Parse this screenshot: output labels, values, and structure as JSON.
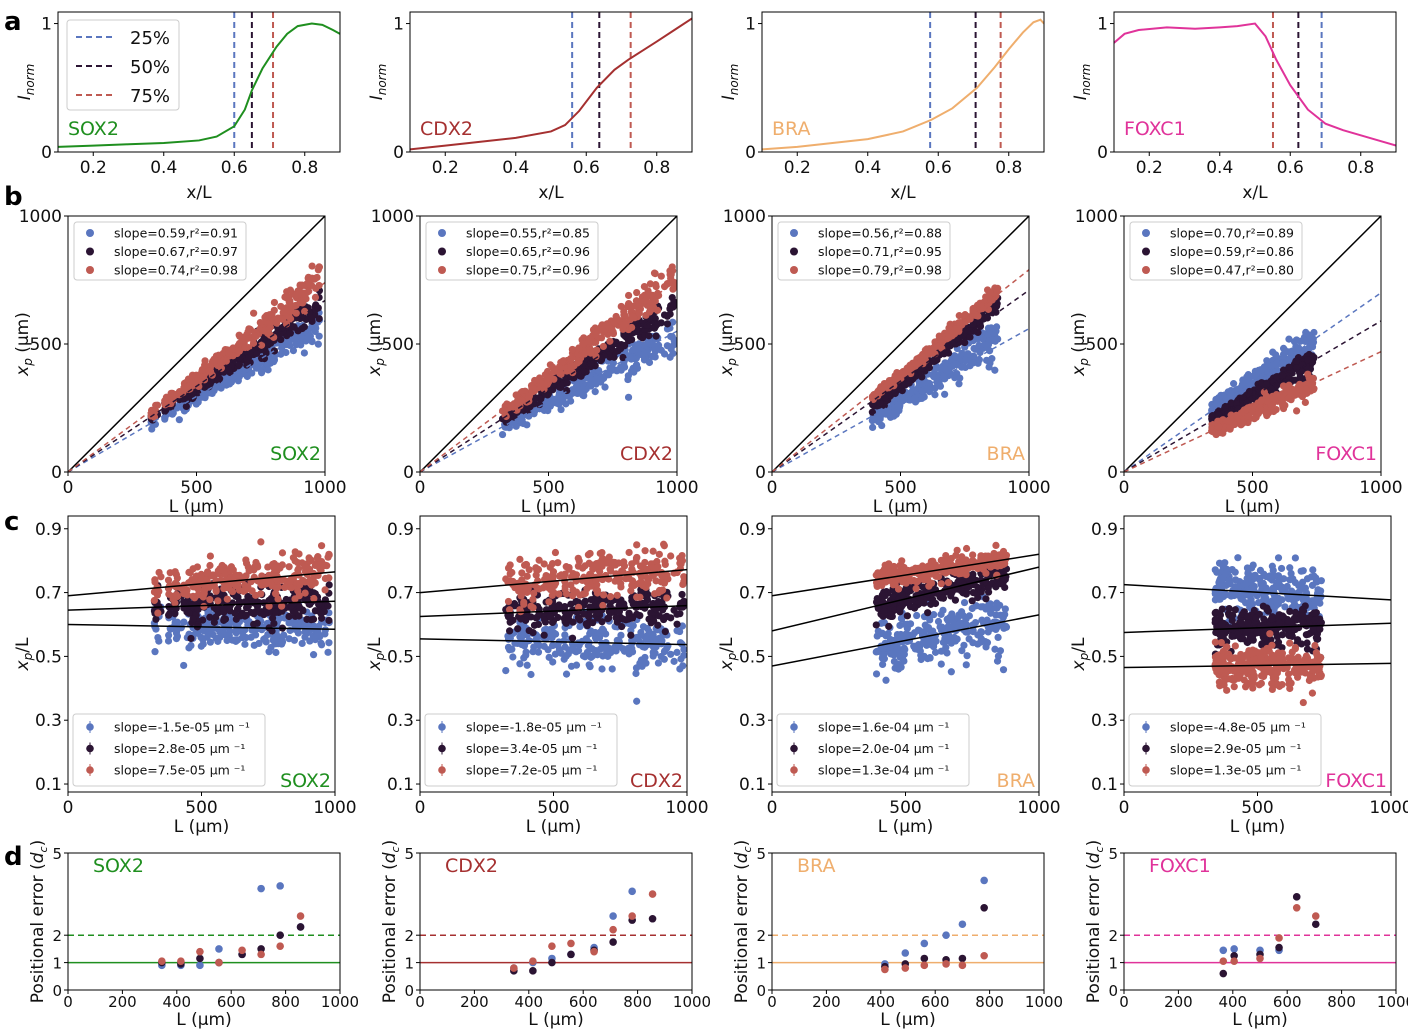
{
  "panel_labels": [
    "a",
    "b",
    "c",
    "d"
  ],
  "colors": {
    "25%": "#5a76bf",
    "50%": "#2b1433",
    "75%": "#bf5a52",
    "identity": "#000000",
    "fit_c": "#000000"
  },
  "genes": [
    {
      "name": "SOX2",
      "color": "#1f8f1f"
    },
    {
      "name": "CDX2",
      "color": "#a53030"
    },
    {
      "name": "BRA",
      "color": "#efae6d"
    },
    {
      "name": "FOXC1",
      "color": "#e0339a"
    }
  ],
  "row_a_legend": [
    "25%",
    "50%",
    "75%"
  ],
  "axis_labels": {
    "a": {
      "x": "x/L",
      "y_main": "I",
      "y_sub": "norm"
    },
    "b": {
      "x": "L (µm)",
      "y_main": "x",
      "y_sub": "p",
      "y_rest": " (µm)"
    },
    "c": {
      "x": "L (µm)",
      "y_main": "x",
      "y_sub": "p",
      "y_rest": "/L"
    },
    "d": {
      "x": "L (µm)",
      "y_main": "Positional error (",
      "y_sub": "c",
      "y_mid": "d",
      "y_rest": ")"
    }
  },
  "chart_data": [
    {
      "type": "line",
      "row": "a",
      "gene": "SOX2",
      "xlim": [
        0.1,
        0.9
      ],
      "ylim": [
        0,
        1.09
      ],
      "xticks": [
        "0.2",
        "0.4",
        "0.6",
        "0.8"
      ],
      "yticks": [
        "0",
        "1"
      ],
      "x": [
        0.1,
        0.2,
        0.3,
        0.4,
        0.5,
        0.55,
        0.6,
        0.63,
        0.65,
        0.68,
        0.72,
        0.75,
        0.78,
        0.82,
        0.85,
        0.88,
        0.9
      ],
      "y": [
        0.04,
        0.05,
        0.06,
        0.07,
        0.09,
        0.12,
        0.2,
        0.33,
        0.48,
        0.65,
        0.82,
        0.92,
        0.98,
        1.0,
        0.99,
        0.95,
        0.92
      ],
      "thresholds": {
        "25%": 0.6,
        "50%": 0.65,
        "75%": 0.71
      }
    },
    {
      "type": "line",
      "row": "a",
      "gene": "CDX2",
      "xlim": [
        0.1,
        0.9
      ],
      "ylim": [
        0,
        1.09
      ],
      "xticks": [
        "0.2",
        "0.4",
        "0.6",
        "0.8"
      ],
      "yticks": [
        "0",
        "1"
      ],
      "x": [
        0.1,
        0.2,
        0.3,
        0.4,
        0.5,
        0.54,
        0.58,
        0.63,
        0.68,
        0.72,
        0.76,
        0.8,
        0.85,
        0.9
      ],
      "y": [
        0.02,
        0.05,
        0.08,
        0.11,
        0.16,
        0.21,
        0.32,
        0.5,
        0.64,
        0.72,
        0.79,
        0.86,
        0.95,
        1.04
      ],
      "thresholds": {
        "25%": 0.56,
        "50%": 0.637,
        "75%": 0.726
      }
    },
    {
      "type": "line",
      "row": "a",
      "gene": "BRA",
      "xlim": [
        0.1,
        0.9
      ],
      "ylim": [
        0,
        1.09
      ],
      "xticks": [
        "0.2",
        "0.4",
        "0.6",
        "0.8"
      ],
      "yticks": [
        "0",
        "1"
      ],
      "x": [
        0.1,
        0.2,
        0.3,
        0.4,
        0.5,
        0.58,
        0.64,
        0.71,
        0.76,
        0.8,
        0.84,
        0.87,
        0.89,
        0.9
      ],
      "y": [
        0.02,
        0.04,
        0.07,
        0.1,
        0.16,
        0.25,
        0.34,
        0.5,
        0.66,
        0.8,
        0.93,
        1.01,
        1.03,
        1.0
      ],
      "thresholds": {
        "25%": 0.577,
        "50%": 0.706,
        "75%": 0.777
      }
    },
    {
      "type": "line",
      "row": "a",
      "gene": "FOXC1",
      "xlim": [
        0.1,
        0.9
      ],
      "ylim": [
        0,
        1.09
      ],
      "xticks": [
        "0.2",
        "0.4",
        "0.6",
        "0.8"
      ],
      "yticks": [
        "0",
        "1"
      ],
      "x": [
        0.1,
        0.13,
        0.17,
        0.25,
        0.33,
        0.4,
        0.45,
        0.5,
        0.53,
        0.56,
        0.6,
        0.65,
        0.7,
        0.75,
        0.8,
        0.85,
        0.9
      ],
      "y": [
        0.85,
        0.92,
        0.95,
        0.97,
        0.96,
        0.97,
        0.98,
        1.0,
        0.9,
        0.72,
        0.52,
        0.33,
        0.22,
        0.17,
        0.13,
        0.09,
        0.05
      ],
      "thresholds": {
        "25%": 0.689,
        "50%": 0.623,
        "75%": 0.551
      }
    },
    {
      "type": "scatter",
      "row": "b",
      "gene": "SOX2",
      "xlim": [
        0,
        1000
      ],
      "ylim": [
        0,
        1000
      ],
      "xticks": [
        "0",
        "500",
        "1000"
      ],
      "yticks": [
        "0",
        "500",
        "1000"
      ],
      "L_range": [
        320,
        980
      ],
      "series": [
        {
          "key": "25%",
          "legend": "slope=0.59,r²=0.91",
          "slope": 0.59,
          "r2": 0.91
        },
        {
          "key": "50%",
          "legend": "slope=0.67,r²=0.97",
          "slope": 0.67,
          "r2": 0.97
        },
        {
          "key": "75%",
          "legend": "slope=0.74,r²=0.98",
          "slope": 0.74,
          "r2": 0.98
        }
      ]
    },
    {
      "type": "scatter",
      "row": "b",
      "gene": "CDX2",
      "xlim": [
        0,
        1000
      ],
      "ylim": [
        0,
        1000
      ],
      "xticks": [
        "0",
        "500",
        "1000"
      ],
      "yticks": [
        "0",
        "500",
        "1000"
      ],
      "L_range": [
        320,
        990
      ],
      "series": [
        {
          "key": "25%",
          "legend": "slope=0.55,r²=0.85",
          "slope": 0.55,
          "r2": 0.85
        },
        {
          "key": "50%",
          "legend": "slope=0.65,r²=0.96",
          "slope": 0.65,
          "r2": 0.96
        },
        {
          "key": "75%",
          "legend": "slope=0.75,r²=0.96",
          "slope": 0.75,
          "r2": 0.96
        }
      ]
    },
    {
      "type": "scatter",
      "row": "b",
      "gene": "BRA",
      "xlim": [
        0,
        1000
      ],
      "ylim": [
        0,
        1000
      ],
      "xticks": [
        "0",
        "500",
        "1000"
      ],
      "yticks": [
        "0",
        "500",
        "1000"
      ],
      "L_range": [
        390,
        880
      ],
      "series": [
        {
          "key": "25%",
          "legend": "slope=0.56,r²=0.88",
          "slope": 0.56,
          "r2": 0.88
        },
        {
          "key": "50%",
          "legend": "slope=0.71,r²=0.95",
          "slope": 0.71,
          "r2": 0.95
        },
        {
          "key": "75%",
          "legend": "slope=0.79,r²=0.98",
          "slope": 0.79,
          "r2": 0.98
        }
      ]
    },
    {
      "type": "scatter",
      "row": "b",
      "gene": "FOXC1",
      "xlim": [
        0,
        1000
      ],
      "ylim": [
        0,
        1000
      ],
      "xticks": [
        "0",
        "500",
        "1000"
      ],
      "yticks": [
        "0",
        "500",
        "1000"
      ],
      "L_range": [
        340,
        740
      ],
      "series": [
        {
          "key": "25%",
          "legend": "slope=0.70,r²=0.89",
          "slope": 0.7,
          "r2": 0.89
        },
        {
          "key": "50%",
          "legend": "slope=0.59,r²=0.86",
          "slope": 0.59,
          "r2": 0.86
        },
        {
          "key": "75%",
          "legend": "slope=0.47,r²=0.80",
          "slope": 0.47,
          "r2": 0.8
        }
      ]
    },
    {
      "type": "scatter",
      "row": "c",
      "gene": "SOX2",
      "xlim": [
        0,
        1000
      ],
      "ylim": [
        0.075,
        0.94
      ],
      "xticks": [
        "0",
        "500",
        "1000"
      ],
      "yticks": [
        "0.1",
        "0.3",
        "0.5",
        "0.7",
        "0.9"
      ],
      "L_range": [
        320,
        980
      ],
      "series": [
        {
          "key": "25%",
          "legend": "slope=-1.5e-05 µm ⁻¹",
          "slope": -1.5e-05,
          "intercept": 0.6,
          "sd": 0.035
        },
        {
          "key": "50%",
          "legend": "slope=2.8e-05 µm ⁻¹",
          "slope": 2.8e-05,
          "intercept": 0.645,
          "sd": 0.03
        },
        {
          "key": "75%",
          "legend": "slope=7.5e-05 µm ⁻¹",
          "slope": 7.5e-05,
          "intercept": 0.69,
          "sd": 0.035
        }
      ]
    },
    {
      "type": "scatter",
      "row": "c",
      "gene": "CDX2",
      "xlim": [
        0,
        1000
      ],
      "ylim": [
        0.075,
        0.94
      ],
      "xticks": [
        "0",
        "500",
        "1000"
      ],
      "yticks": [
        "0.1",
        "0.3",
        "0.5",
        "0.7",
        "0.9"
      ],
      "L_range": [
        320,
        990
      ],
      "series": [
        {
          "key": "25%",
          "legend": "slope=-1.8e-05 µm ⁻¹",
          "slope": -1.8e-05,
          "intercept": 0.555,
          "sd": 0.045
        },
        {
          "key": "50%",
          "legend": "slope=3.4e-05 µm ⁻¹",
          "slope": 3.4e-05,
          "intercept": 0.625,
          "sd": 0.03
        },
        {
          "key": "75%",
          "legend": "slope=7.2e-05 µm ⁻¹",
          "slope": 7.2e-05,
          "intercept": 0.7,
          "sd": 0.04
        }
      ]
    },
    {
      "type": "scatter",
      "row": "c",
      "gene": "BRA",
      "xlim": [
        0,
        1000
      ],
      "ylim": [
        0.075,
        0.94
      ],
      "xticks": [
        "0",
        "500",
        "1000"
      ],
      "yticks": [
        "0.1",
        "0.3",
        "0.5",
        "0.7",
        "0.9"
      ],
      "L_range": [
        390,
        880
      ],
      "series": [
        {
          "key": "25%",
          "legend": "slope=1.6e-04 µm ⁻¹",
          "slope": 0.00016,
          "intercept": 0.47,
          "sd": 0.04
        },
        {
          "key": "50%",
          "legend": "slope=2.0e-04 µm ⁻¹",
          "slope": 0.0002,
          "intercept": 0.58,
          "sd": 0.025
        },
        {
          "key": "75%",
          "legend": "slope=1.3e-04 µm ⁻¹",
          "slope": 0.00013,
          "intercept": 0.69,
          "sd": 0.018
        }
      ]
    },
    {
      "type": "scatter",
      "row": "c",
      "gene": "FOXC1",
      "xlim": [
        0,
        1000
      ],
      "ylim": [
        0.075,
        0.94
      ],
      "xticks": [
        "0",
        "500",
        "1000"
      ],
      "yticks": [
        "0.1",
        "0.3",
        "0.5",
        "0.7",
        "0.9"
      ],
      "L_range": [
        340,
        740
      ],
      "series": [
        {
          "key": "25%",
          "legend": "slope=-4.8e-05 µm ⁻¹",
          "slope": -4.8e-05,
          "intercept": 0.725,
          "sd": 0.04
        },
        {
          "key": "50%",
          "legend": "slope=2.9e-05 µm ⁻¹",
          "slope": 2.9e-05,
          "intercept": 0.575,
          "sd": 0.03
        },
        {
          "key": "75%",
          "legend": "slope=1.3e-05 µm ⁻¹",
          "slope": 1.3e-05,
          "intercept": 0.465,
          "sd": 0.035
        }
      ]
    },
    {
      "type": "scatter",
      "row": "d",
      "gene": "SOX2",
      "xlim": [
        0,
        1000
      ],
      "ylim": [
        0,
        5
      ],
      "xticks": [
        "0",
        "200",
        "400",
        "600",
        "800",
        "1000"
      ],
      "yticks": [
        "0",
        "1",
        "2",
        "5"
      ],
      "ref_lines": [
        1,
        2
      ],
      "x": [
        345,
        415,
        485,
        555,
        640,
        710,
        780,
        855
      ],
      "series": [
        {
          "key": "25%",
          "values": [
            0.9,
            0.9,
            0.9,
            1.5,
            1.3,
            3.7,
            3.8,
            2.3
          ]
        },
        {
          "key": "50%",
          "values": [
            1.0,
            0.95,
            1.15,
            1.0,
            1.3,
            1.5,
            2.0,
            2.3
          ]
        },
        {
          "key": "75%",
          "values": [
            1.05,
            1.05,
            1.4,
            1.0,
            1.45,
            1.3,
            1.6,
            2.7
          ]
        }
      ]
    },
    {
      "type": "scatter",
      "row": "d",
      "gene": "CDX2",
      "xlim": [
        0,
        1000
      ],
      "ylim": [
        0,
        5
      ],
      "xticks": [
        "0",
        "200",
        "400",
        "600",
        "800",
        "1000"
      ],
      "yticks": [
        "0",
        "1",
        "2",
        "5"
      ],
      "ref_lines": [
        1,
        2
      ],
      "x": [
        345,
        415,
        485,
        555,
        640,
        710,
        780,
        855
      ],
      "series": [
        {
          "key": "25%",
          "values": [
            0.8,
            1.0,
            1.15,
            1.3,
            1.55,
            2.7,
            3.6,
            null
          ]
        },
        {
          "key": "50%",
          "values": [
            0.7,
            0.7,
            1.0,
            1.3,
            1.45,
            1.75,
            2.55,
            2.6
          ]
        },
        {
          "key": "75%",
          "values": [
            0.8,
            1.05,
            1.6,
            1.7,
            1.4,
            2.2,
            2.7,
            3.5
          ]
        }
      ]
    },
    {
      "type": "scatter",
      "row": "d",
      "gene": "BRA",
      "xlim": [
        0,
        1000
      ],
      "ylim": [
        0,
        5
      ],
      "xticks": [
        "0",
        "200",
        "400",
        "600",
        "800",
        "1000"
      ],
      "yticks": [
        "0",
        "1",
        "2",
        "5"
      ],
      "ref_lines": [
        1,
        2
      ],
      "x": [
        415,
        490,
        560,
        640,
        700,
        780
      ],
      "series": [
        {
          "key": "25%",
          "values": [
            0.95,
            1.35,
            1.7,
            2.0,
            2.4,
            4.0
          ]
        },
        {
          "key": "50%",
          "values": [
            0.85,
            0.95,
            1.15,
            1.1,
            1.15,
            3.0
          ]
        },
        {
          "key": "75%",
          "values": [
            0.75,
            0.8,
            0.9,
            0.95,
            0.9,
            1.25
          ]
        }
      ]
    },
    {
      "type": "scatter",
      "row": "d",
      "gene": "FOXC1",
      "xlim": [
        0,
        1000
      ],
      "ylim": [
        0,
        5
      ],
      "xticks": [
        "0",
        "200",
        "400",
        "600",
        "800",
        "1000"
      ],
      "yticks": [
        "0",
        "1",
        "2",
        "5"
      ],
      "ref_lines": [
        1,
        2
      ],
      "x": [
        365,
        405,
        500,
        570,
        635,
        705
      ],
      "series": [
        {
          "key": "25%",
          "values": [
            1.45,
            1.5,
            1.45,
            1.45,
            null,
            null
          ]
        },
        {
          "key": "50%",
          "values": [
            0.6,
            1.25,
            1.3,
            1.55,
            3.4,
            2.4
          ]
        },
        {
          "key": "75%",
          "values": [
            1.05,
            1.05,
            1.15,
            1.9,
            3.0,
            2.7
          ]
        }
      ]
    }
  ]
}
